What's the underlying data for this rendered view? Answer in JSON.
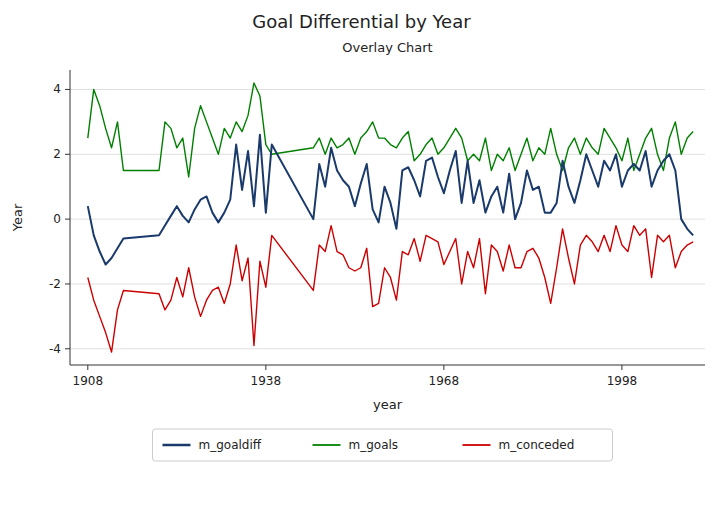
{
  "chart_data": {
    "type": "line",
    "title": "Goal Differential by Year",
    "subtitle": "Overlay Chart",
    "xlabel": "year",
    "ylabel": "Year",
    "x": [
      1908,
      1909,
      1910,
      1911,
      1912,
      1913,
      1914,
      1920,
      1921,
      1922,
      1923,
      1924,
      1925,
      1926,
      1927,
      1928,
      1929,
      1930,
      1931,
      1932,
      1933,
      1934,
      1935,
      1936,
      1937,
      1938,
      1939,
      1946,
      1947,
      1948,
      1949,
      1950,
      1951,
      1952,
      1953,
      1954,
      1955,
      1956,
      1957,
      1958,
      1959,
      1960,
      1961,
      1962,
      1963,
      1964,
      1965,
      1966,
      1967,
      1968,
      1969,
      1970,
      1971,
      1972,
      1973,
      1974,
      1975,
      1976,
      1977,
      1978,
      1979,
      1980,
      1981,
      1982,
      1983,
      1984,
      1985,
      1986,
      1987,
      1988,
      1989,
      1990,
      1991,
      1992,
      1993,
      1994,
      1995,
      1996,
      1997,
      1998,
      1999,
      2000,
      2001,
      2002,
      2003,
      2004,
      2005,
      2006,
      2007,
      2008,
      2009,
      2010
    ],
    "series": [
      {
        "name": "m_goaldiff",
        "color": "#1a3a6b",
        "values": [
          0.4,
          -0.5,
          -1.0,
          -1.4,
          -1.2,
          -0.9,
          -0.6,
          -0.5,
          -0.2,
          0.1,
          0.4,
          0.1,
          -0.1,
          0.3,
          0.6,
          0.7,
          0.2,
          -0.1,
          0.2,
          0.6,
          2.3,
          0.9,
          2.1,
          0.4,
          2.6,
          0.2,
          2.3,
          0.0,
          1.7,
          1.0,
          2.2,
          1.5,
          1.2,
          1.0,
          0.4,
          1.1,
          1.7,
          0.3,
          -0.1,
          1.0,
          0.5,
          -0.3,
          1.5,
          1.6,
          1.2,
          0.7,
          1.8,
          1.9,
          1.3,
          0.8,
          1.5,
          2.1,
          0.5,
          1.8,
          0.5,
          1.2,
          0.2,
          0.7,
          1.0,
          0.2,
          1.4,
          0.0,
          0.5,
          1.5,
          0.9,
          1.0,
          0.2,
          0.2,
          0.5,
          1.8,
          1.0,
          0.5,
          1.2,
          2.0,
          1.5,
          1.0,
          1.8,
          1.5,
          2.0,
          1.0,
          1.5,
          1.7,
          1.5,
          2.1,
          1.0,
          1.5,
          1.8,
          2.0,
          1.5,
          0.0,
          -0.3,
          -0.5
        ]
      },
      {
        "name": "m_goals",
        "color": "#008000",
        "values": [
          2.5,
          4.0,
          3.5,
          2.8,
          2.2,
          3.0,
          1.5,
          1.5,
          3.0,
          2.8,
          2.2,
          2.5,
          1.3,
          2.8,
          3.5,
          3.0,
          2.5,
          2.0,
          2.8,
          2.5,
          3.0,
          2.7,
          3.2,
          4.2,
          3.8,
          2.3,
          2.0,
          2.2,
          2.5,
          2.0,
          2.5,
          2.2,
          2.3,
          2.5,
          2.0,
          2.5,
          2.7,
          3.0,
          2.5,
          2.5,
          2.3,
          2.2,
          2.5,
          2.7,
          1.8,
          2.0,
          2.3,
          2.5,
          2.0,
          2.2,
          2.5,
          2.8,
          2.5,
          1.8,
          2.0,
          1.8,
          2.5,
          1.5,
          2.0,
          1.8,
          2.2,
          1.5,
          2.0,
          2.5,
          1.8,
          2.2,
          2.0,
          2.8,
          2.0,
          1.5,
          2.2,
          2.5,
          2.0,
          2.5,
          2.2,
          2.0,
          2.8,
          2.5,
          2.2,
          1.8,
          2.5,
          1.5,
          2.0,
          2.5,
          2.8,
          2.0,
          1.5,
          2.5,
          3.0,
          2.0,
          2.5,
          2.7
        ]
      },
      {
        "name": "m_conceded",
        "color": "#cc0000",
        "values": [
          -1.8,
          -2.5,
          -3.0,
          -3.5,
          -4.1,
          -2.8,
          -2.2,
          -2.3,
          -2.8,
          -2.5,
          -1.8,
          -2.4,
          -1.5,
          -2.4,
          -3.0,
          -2.5,
          -2.2,
          -2.1,
          -2.6,
          -2.0,
          -0.8,
          -1.9,
          -1.2,
          -3.9,
          -1.3,
          -2.1,
          -0.5,
          -2.2,
          -0.8,
          -1.0,
          -0.2,
          -1.0,
          -1.1,
          -1.5,
          -1.6,
          -1.5,
          -0.9,
          -2.7,
          -2.6,
          -1.5,
          -1.8,
          -2.5,
          -1.0,
          -1.1,
          -0.6,
          -1.3,
          -0.5,
          -0.6,
          -0.7,
          -1.4,
          -1.0,
          -0.6,
          -2.0,
          -1.0,
          -1.5,
          -0.6,
          -2.3,
          -0.8,
          -1.0,
          -1.6,
          -0.8,
          -1.5,
          -1.5,
          -1.0,
          -0.9,
          -1.2,
          -1.8,
          -2.6,
          -1.5,
          -0.3,
          -1.2,
          -2.0,
          -0.8,
          -0.5,
          -0.7,
          -1.0,
          -0.5,
          -1.0,
          -0.2,
          -0.8,
          -1.0,
          -0.2,
          -0.5,
          -0.3,
          -1.8,
          -0.5,
          -0.7,
          -0.5,
          -1.5,
          -1.0,
          -0.8,
          -0.7
        ]
      }
    ],
    "xlim": [
      1905,
      2012
    ],
    "ylim": [
      -4.5,
      4.6
    ],
    "xticks": [
      1908,
      1938,
      1968,
      1998
    ],
    "yticks": [
      -4,
      -2,
      0,
      2,
      4
    ],
    "grid": true,
    "legend": "bottom"
  }
}
